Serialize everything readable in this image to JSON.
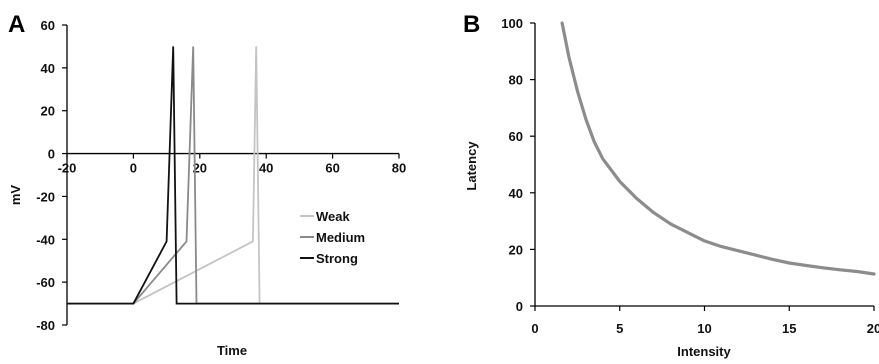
{
  "chart_data": [
    {
      "panel_label": "A",
      "type": "line",
      "xlabel": "Time",
      "ylabel": "mV",
      "xlim": [
        -20,
        80
      ],
      "ylim": [
        -80,
        60
      ],
      "x_ticks": [
        -20,
        0,
        20,
        40,
        60,
        80
      ],
      "y_ticks": [
        60,
        40,
        20,
        0,
        -20,
        -40,
        -60,
        -80
      ],
      "grid": false,
      "legend_position": "right",
      "baseline": -70,
      "series": [
        {
          "name": "Weak",
          "color": "#c4c4c4",
          "points": [
            [
              -20,
              -70
            ],
            [
              0,
              -70
            ],
            [
              36,
              -41
            ],
            [
              37,
              50
            ],
            [
              38,
              -70
            ],
            [
              80,
              -70
            ]
          ]
        },
        {
          "name": "Medium",
          "color": "#8a8a8a",
          "points": [
            [
              -20,
              -70
            ],
            [
              0,
              -70
            ],
            [
              16,
              -41
            ],
            [
              18,
              50
            ],
            [
              19,
              -70
            ],
            [
              80,
              -70
            ]
          ]
        },
        {
          "name": "Strong",
          "color": "#111111",
          "points": [
            [
              -20,
              -70
            ],
            [
              0,
              -70
            ],
            [
              10,
              -41
            ],
            [
              12,
              50
            ],
            [
              13,
              -70
            ],
            [
              80,
              -70
            ]
          ]
        }
      ]
    },
    {
      "panel_label": "B",
      "type": "line",
      "xlabel": "Intensity",
      "ylabel": "Latency",
      "xlim": [
        0,
        20
      ],
      "ylim": [
        0,
        100
      ],
      "x_ticks": [
        0,
        5,
        10,
        15,
        20
      ],
      "y_ticks": [
        100,
        80,
        60,
        40,
        20,
        0
      ],
      "grid": false,
      "series": [
        {
          "name": "",
          "color": "#8c8c8c",
          "points": [
            [
              1.6,
              100
            ],
            [
              2,
              88
            ],
            [
              2.5,
              76
            ],
            [
              3,
              66
            ],
            [
              3.5,
              58
            ],
            [
              4,
              52
            ],
            [
              5,
              44
            ],
            [
              6,
              38
            ],
            [
              7,
              33
            ],
            [
              8,
              29
            ],
            [
              9,
              26
            ],
            [
              10,
              23
            ],
            [
              11,
              21
            ],
            [
              12,
              19.5
            ],
            [
              13,
              18
            ],
            [
              14,
              16.5
            ],
            [
              15,
              15.2
            ],
            [
              16,
              14.3
            ],
            [
              17,
              13.5
            ],
            [
              18,
              12.8
            ],
            [
              19,
              12.2
            ],
            [
              20,
              11.3
            ]
          ]
        }
      ]
    }
  ]
}
